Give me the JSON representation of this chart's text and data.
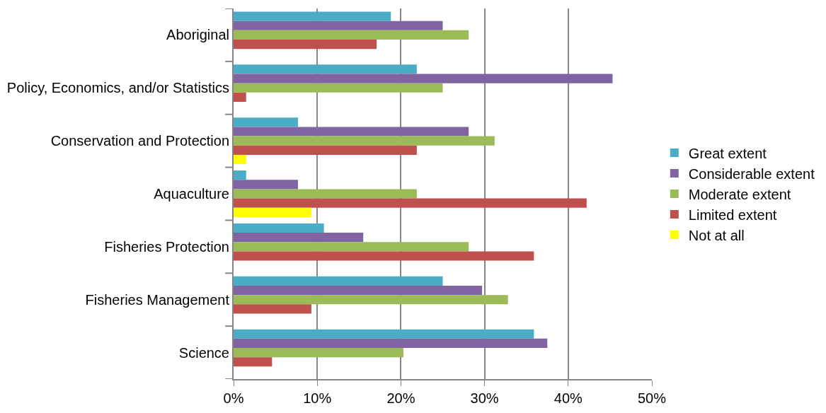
{
  "chart_data": {
    "type": "bar",
    "orientation": "horizontal",
    "categories": [
      "Aboriginal",
      "Policy, Economics, and/or Statistics",
      "Conservation and Protection",
      "Aquaculture",
      "Fisheries Protection",
      "Fisheries Management",
      "Science"
    ],
    "series": [
      {
        "name": "Great extent",
        "color": "#4bacc6",
        "values": [
          18.8,
          21.9,
          7.7,
          1.5,
          10.8,
          25.0,
          35.9
        ]
      },
      {
        "name": "Considerable extent",
        "color": "#8064a2",
        "values": [
          25.0,
          45.3,
          28.1,
          7.7,
          15.5,
          29.7,
          37.5
        ]
      },
      {
        "name": "Moderate extent",
        "color": "#9bbb59",
        "values": [
          28.1,
          25.0,
          31.2,
          21.9,
          28.1,
          32.8,
          20.3
        ]
      },
      {
        "name": "Limited extent",
        "color": "#c0504d",
        "values": [
          17.1,
          1.5,
          21.9,
          42.2,
          35.9,
          9.3,
          4.6
        ]
      },
      {
        "name": "Not at all",
        "color": "#ffff00",
        "values": [
          null,
          null,
          1.5,
          9.3,
          null,
          null,
          null
        ]
      }
    ],
    "xlim": [
      0,
      50
    ],
    "xticks": [
      {
        "value": 0,
        "label": "0%"
      },
      {
        "value": 10,
        "label": "10%"
      },
      {
        "value": 20,
        "label": "20%"
      },
      {
        "value": 30,
        "label": "30%"
      },
      {
        "value": 40,
        "label": "40%"
      },
      {
        "value": 50,
        "label": "50%"
      }
    ],
    "grid": "x",
    "legend": "right"
  }
}
